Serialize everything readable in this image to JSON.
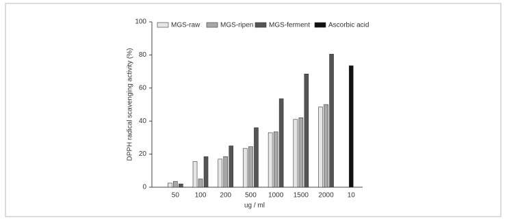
{
  "chart_data": {
    "type": "bar",
    "x_label": "ug / ml",
    "y_label": "DPPH radical scavenging activity (%)",
    "categories": [
      "50",
      "100",
      "200",
      "500",
      "1000",
      "1500",
      "2000",
      "10"
    ],
    "series": [
      {
        "name": "MGS-raw",
        "color": "#e6e6e6",
        "values": [
          2.5,
          15.5,
          17,
          23.5,
          33,
          41,
          48.5,
          null
        ]
      },
      {
        "name": "MGS-ripen",
        "color": "#a8a8a8",
        "values": [
          3.5,
          5,
          18.5,
          24.5,
          33.5,
          42,
          50,
          null
        ]
      },
      {
        "name": "MGS-ferment",
        "color": "#555555",
        "values": [
          2,
          18.5,
          25,
          36,
          53.5,
          68.5,
          80.5,
          null
        ]
      },
      {
        "name": "Ascorbic acid",
        "color": "#111111",
        "values": [
          null,
          null,
          null,
          null,
          null,
          null,
          null,
          73.5
        ]
      }
    ],
    "ylim": [
      0,
      100
    ],
    "yticks": [
      0,
      20,
      40,
      60,
      80,
      100
    ],
    "grid": false
  }
}
